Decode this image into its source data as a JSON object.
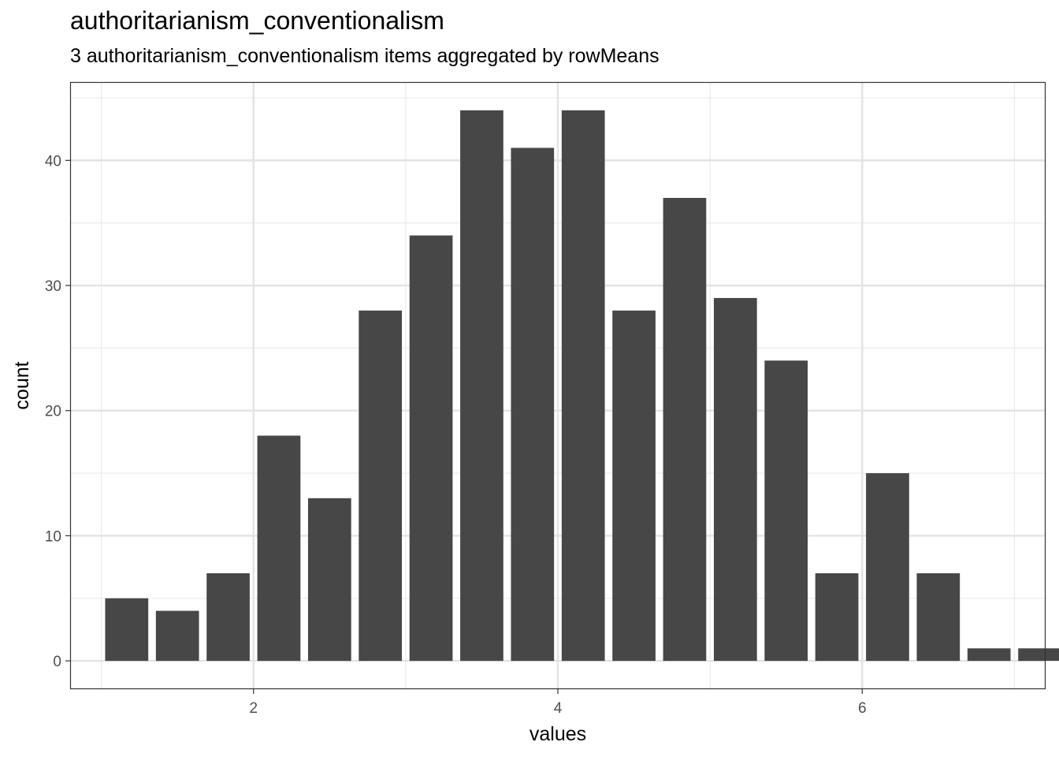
{
  "chart_data": {
    "type": "bar",
    "title": "authoritarianism_conventionalism",
    "subtitle": "3 authoritarianism_conventionalism items aggregated by rowMeans",
    "xlabel": "values",
    "ylabel": "count",
    "xlim": [
      0.8,
      7.2
    ],
    "ylim": [
      -2.2,
      46.2
    ],
    "x_ticks": [
      2,
      4,
      6
    ],
    "y_ticks": [
      0,
      10,
      20,
      30,
      40
    ],
    "grid": true,
    "bar_color": "#474747",
    "x": [
      1.1667,
      1.5,
      1.8333,
      2.1667,
      2.5,
      2.8333,
      3.1667,
      3.5,
      3.8333,
      4.1667,
      4.5,
      4.8333,
      5.1667,
      5.5,
      5.8333,
      6.1667,
      6.5,
      6.8333,
      7.1667
    ],
    "values": [
      5,
      4,
      7,
      18,
      13,
      28,
      34,
      44,
      41,
      44,
      28,
      37,
      29,
      24,
      7,
      15,
      7,
      1,
      1
    ]
  }
}
